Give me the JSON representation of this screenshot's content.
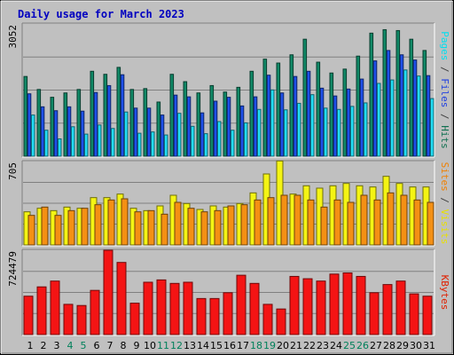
{
  "chart_data": {
    "type": "bar",
    "title": "Daily usage for March 2023",
    "categories": [
      "1",
      "2",
      "3",
      "4",
      "5",
      "6",
      "7",
      "8",
      "9",
      "10",
      "11",
      "12",
      "13",
      "14",
      "15",
      "16",
      "17",
      "18",
      "19",
      "20",
      "21",
      "22",
      "23",
      "24",
      "25",
      "26",
      "27",
      "28",
      "29",
      "30",
      "31"
    ],
    "weekend_days": [
      "4",
      "5",
      "11",
      "12",
      "18",
      "19",
      "25",
      "26"
    ],
    "panels": [
      {
        "id": "hits",
        "max_label": "3052",
        "ylim": [
          0,
          3052
        ],
        "axis_label_parts": [
          {
            "text": "Pages",
            "color": "#00e0f0"
          },
          {
            "text": " / ",
            "color": "#404040"
          },
          {
            "text": "Files",
            "color": "#2040e0"
          },
          {
            "text": " / ",
            "color": "#404040"
          },
          {
            "text": "Hits",
            "color": "#107050"
          }
        ],
        "series": [
          {
            "name": "Hits",
            "color": "#118866",
            "values": [
              1840,
              1540,
              1360,
              1460,
              1540,
              1960,
              1890,
              2050,
              1540,
              1560,
              1250,
              1890,
              1720,
              1460,
              1630,
              1480,
              1590,
              1960,
              2240,
              2150,
              2340,
              2700,
              2170,
              1920,
              2010,
              2310,
              2840,
              2920,
              2900,
              2700,
              2440
            ]
          },
          {
            "name": "Files",
            "color": "#1f50e8",
            "values": [
              1440,
              1140,
              1050,
              1140,
              1040,
              1470,
              1630,
              1880,
              1110,
              1110,
              950,
              1410,
              1370,
              1000,
              1270,
              1360,
              1160,
              1370,
              1870,
              1460,
              1840,
              1960,
              1570,
              1390,
              1550,
              1780,
              2200,
              2440,
              2340,
              2220,
              1860
            ]
          },
          {
            "name": "Pages",
            "color": "#22dcf4",
            "values": [
              950,
              600,
              400,
              680,
              510,
              720,
              640,
              1020,
              530,
              560,
              490,
              990,
              690,
              520,
              800,
              600,
              770,
              1080,
              1530,
              1070,
              1220,
              1420,
              1110,
              1080,
              1150,
              1230,
              1680,
              1760,
              1990,
              1850,
              1330
            ]
          }
        ]
      },
      {
        "id": "visits",
        "max_label": "705",
        "ylim": [
          0,
          705
        ],
        "axis_label_parts": [
          {
            "text": "Sites",
            "color": "#f08000"
          },
          {
            "text": " / ",
            "color": "#404040"
          },
          {
            "text": "Visits",
            "color": "#e8e000"
          }
        ],
        "series": [
          {
            "name": "Visits",
            "color": "#f4f414",
            "values": [
              280,
              310,
              290,
              320,
              310,
              400,
              400,
              430,
              310,
              290,
              330,
              420,
              350,
              300,
              330,
              320,
              350,
              440,
              600,
              710,
              430,
              500,
              480,
              500,
              520,
              500,
              490,
              580,
              520,
              490,
              490
            ]
          },
          {
            "name": "Sites",
            "color": "#f49014",
            "values": [
              250,
              320,
              250,
              290,
              310,
              340,
              380,
              390,
              280,
              290,
              260,
              360,
              310,
              280,
              290,
              330,
              340,
              380,
              400,
              420,
              420,
              380,
              320,
              380,
              360,
              420,
              380,
              440,
              420,
              380,
              360
            ]
          }
        ]
      },
      {
        "id": "kbytes",
        "max_label": "724479",
        "ylim": [
          0,
          724479
        ],
        "axis_label_parts": [
          {
            "text": "KBytes",
            "color": "#e02000"
          }
        ],
        "series": [
          {
            "name": "KBytes",
            "color": "#f41414",
            "values": [
              330000,
              410000,
              460000,
              260000,
              250000,
              380000,
              724479,
              620000,
              270000,
              450000,
              470000,
              440000,
              450000,
              310000,
              310000,
              360000,
              510000,
              440000,
              260000,
              220000,
              500000,
              480000,
              460000,
              520000,
              530000,
              500000,
              360000,
              430000,
              460000,
              350000,
              330000
            ]
          }
        ]
      }
    ]
  }
}
